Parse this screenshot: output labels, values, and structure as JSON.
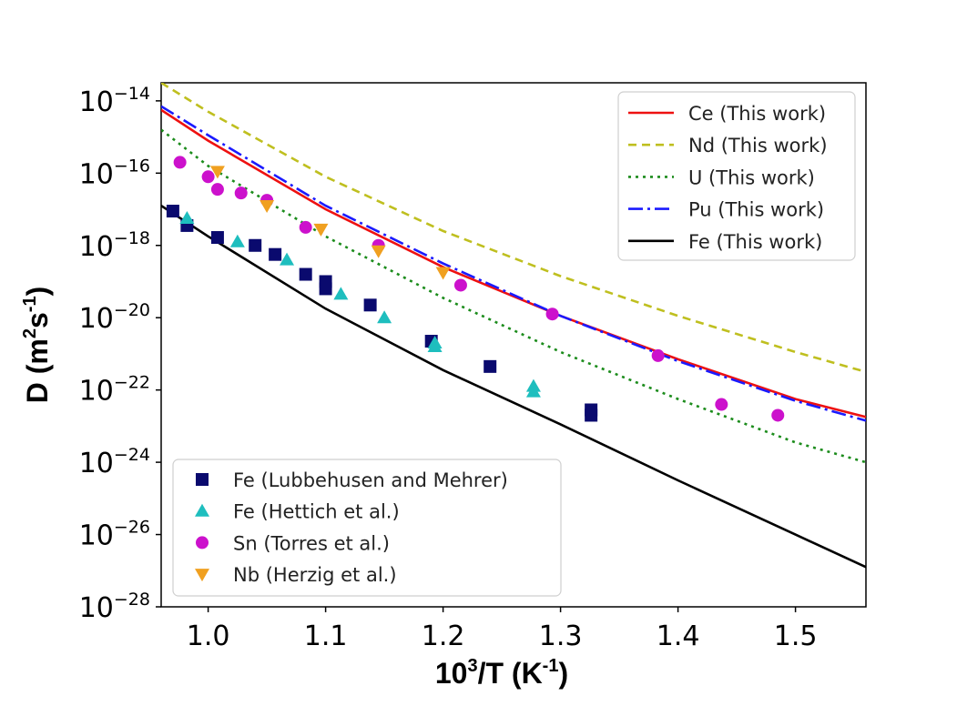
{
  "chart_data": {
    "type": "scatter",
    "xlabel": {
      "base": "10",
      "sup": "3",
      "mid": "/T (K",
      "unit_sup": "-1",
      "end": ")"
    },
    "ylabel": {
      "start": "D (m",
      "sup1": "2",
      "mid": "s",
      "sup2": "-1",
      "end": ")"
    },
    "x_scale": "linear",
    "y_scale": "log",
    "xlim": [
      0.96,
      1.56
    ],
    "ylim_log10": [
      -28,
      -13.5
    ],
    "xticks": [
      1.0,
      1.1,
      1.2,
      1.3,
      1.4,
      1.5
    ],
    "xtick_labels": [
      "1.0",
      "1.1",
      "1.2",
      "1.3",
      "1.4",
      "1.5"
    ],
    "ytick_exponents": [
      -14,
      -16,
      -18,
      -20,
      -22,
      -24,
      -26,
      -28
    ],
    "ytick_base": "10",
    "ytick_sups": [
      "−14",
      "−16",
      "−18",
      "−20",
      "−22",
      "−24",
      "−26",
      "−28"
    ],
    "grid": false,
    "lines": [
      {
        "name": "Ce (This work)",
        "color": "#ee1111",
        "dash": "solid",
        "log10_y": [
          [
            0.96,
            -14.25
          ],
          [
            1.0,
            -15.1
          ],
          [
            1.1,
            -17.0
          ],
          [
            1.2,
            -18.6
          ],
          [
            1.3,
            -19.95
          ],
          [
            1.4,
            -21.15
          ],
          [
            1.5,
            -22.25
          ],
          [
            1.56,
            -22.75
          ]
        ]
      },
      {
        "name": "Nd (This work)",
        "color": "#bfbf1f",
        "dash": "9,6",
        "log10_y": [
          [
            0.96,
            -13.5
          ],
          [
            1.0,
            -14.3
          ],
          [
            1.1,
            -16.1
          ],
          [
            1.2,
            -17.6
          ],
          [
            1.3,
            -18.85
          ],
          [
            1.4,
            -19.95
          ],
          [
            1.5,
            -20.95
          ],
          [
            1.56,
            -21.5
          ]
        ]
      },
      {
        "name": "U (This work)",
        "color": "#1c8c1c",
        "dash": "3,5",
        "log10_y": [
          [
            0.96,
            -14.8
          ],
          [
            1.0,
            -15.8
          ],
          [
            1.1,
            -17.75
          ],
          [
            1.2,
            -19.45
          ],
          [
            1.3,
            -20.95
          ],
          [
            1.4,
            -22.25
          ],
          [
            1.5,
            -23.45
          ],
          [
            1.56,
            -24.0
          ]
        ]
      },
      {
        "name": "Pu (This work)",
        "color": "#1a1aff",
        "dash": "16,5,3,5",
        "log10_y": [
          [
            0.96,
            -14.15
          ],
          [
            1.0,
            -14.95
          ],
          [
            1.1,
            -16.9
          ],
          [
            1.2,
            -18.5
          ],
          [
            1.3,
            -19.95
          ],
          [
            1.4,
            -21.2
          ],
          [
            1.5,
            -22.3
          ],
          [
            1.56,
            -22.85
          ]
        ]
      },
      {
        "name": "Fe (This work)",
        "color": "#000000",
        "dash": "solid",
        "log10_y": [
          [
            0.96,
            -16.9
          ],
          [
            1.0,
            -17.75
          ],
          [
            1.1,
            -19.75
          ],
          [
            1.2,
            -21.45
          ],
          [
            1.3,
            -22.95
          ],
          [
            1.4,
            -24.5
          ],
          [
            1.5,
            -26.0
          ],
          [
            1.56,
            -26.9
          ]
        ]
      }
    ],
    "points": [
      {
        "name": "Fe (Lubbehusen and Mehrer)",
        "color": "#0a0a6e",
        "marker": "square",
        "log10_y": [
          [
            0.97,
            -17.05
          ],
          [
            0.982,
            -17.45
          ],
          [
            1.008,
            -17.78
          ],
          [
            1.04,
            -18.0
          ],
          [
            1.057,
            -18.25
          ],
          [
            1.083,
            -18.8
          ],
          [
            1.1,
            -19.0
          ],
          [
            1.1,
            -19.2
          ],
          [
            1.138,
            -19.65
          ],
          [
            1.19,
            -20.65
          ],
          [
            1.24,
            -21.35
          ],
          [
            1.326,
            -22.55
          ],
          [
            1.326,
            -22.7
          ]
        ]
      },
      {
        "name": "Fe (Hettich et al.)",
        "color": "#1ebebe",
        "marker": "triangle-up",
        "log10_y": [
          [
            0.982,
            -17.25
          ],
          [
            1.025,
            -17.9
          ],
          [
            1.067,
            -18.4
          ],
          [
            1.113,
            -19.35
          ],
          [
            1.15,
            -20.0
          ],
          [
            1.193,
            -20.7
          ],
          [
            1.193,
            -20.8
          ],
          [
            1.277,
            -21.9
          ],
          [
            1.277,
            -22.05
          ]
        ]
      },
      {
        "name": "Sn (Torres et al.)",
        "color": "#cc11cc",
        "marker": "circle",
        "log10_y": [
          [
            0.976,
            -15.7
          ],
          [
            1.0,
            -16.1
          ],
          [
            1.008,
            -16.45
          ],
          [
            1.028,
            -16.55
          ],
          [
            1.05,
            -16.75
          ],
          [
            1.083,
            -17.5
          ],
          [
            1.145,
            -18.0
          ],
          [
            1.215,
            -19.1
          ],
          [
            1.293,
            -19.9
          ],
          [
            1.383,
            -21.05
          ],
          [
            1.437,
            -22.4
          ],
          [
            1.485,
            -22.7
          ]
        ]
      },
      {
        "name": "Nb (Herzig et al.)",
        "color": "#f0a020",
        "marker": "triangle-down",
        "log10_y": [
          [
            1.008,
            -15.95
          ],
          [
            1.05,
            -16.9
          ],
          [
            1.096,
            -17.55
          ],
          [
            1.145,
            -18.15
          ],
          [
            1.2,
            -18.75
          ]
        ]
      }
    ]
  }
}
